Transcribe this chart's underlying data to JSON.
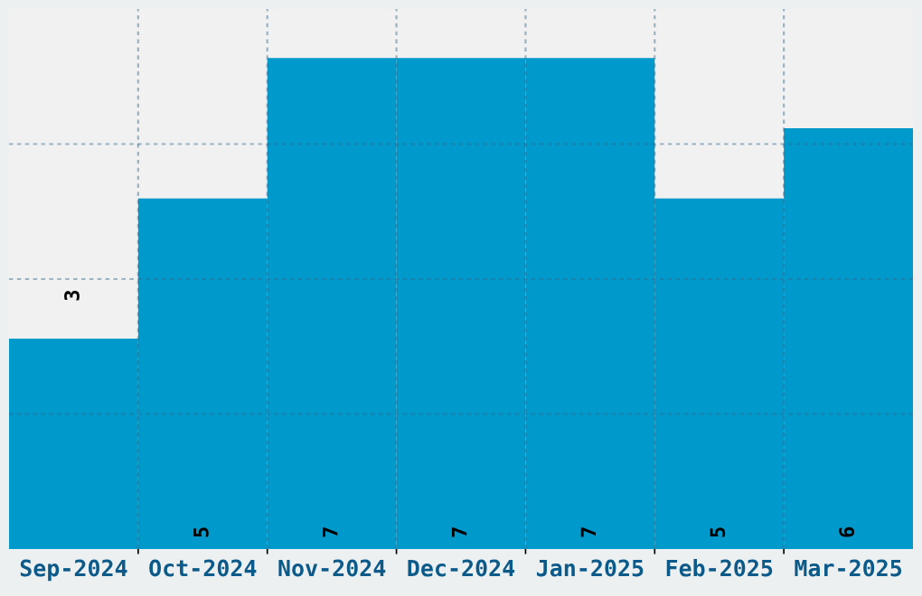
{
  "chart_data": {
    "type": "bar",
    "categories": [
      "Sep-2024",
      "Oct-2024",
      "Nov-2024",
      "Dec-2024",
      "Jan-2025",
      "Feb-2025",
      "Mar-2025"
    ],
    "values": [
      3,
      5,
      7,
      7,
      7,
      5,
      6
    ],
    "color": "#0099cc",
    "ylim": [
      0,
      7.7
    ],
    "yticks": [
      {
        "value": 1.925,
        "label": null
      },
      {
        "value": 3.85,
        "label": null
      },
      {
        "value": 5.775,
        "label": null
      }
    ],
    "tick_labels": "x",
    "grid": true,
    "data_labels": true
  }
}
